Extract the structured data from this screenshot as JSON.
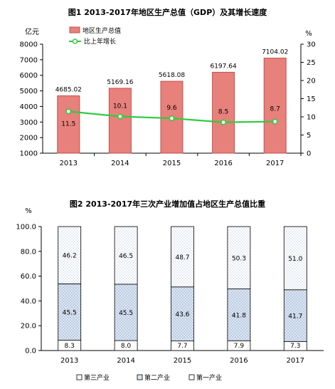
{
  "colors": {
    "bar1_fill": "#e8807b",
    "bar1_stroke": "#c0504d",
    "line": "#2ecc40",
    "stack_tertiary": "#ffffff",
    "stack_secondary": "#dce6f1",
    "stack_primary": "#ffffff",
    "axis": "#000000"
  },
  "chart_data": [
    {
      "type": "bar",
      "title": "图1  2013-2017年地区生产总值（GDP）及其增长速度",
      "ylabel": "亿元",
      "y2label": "%",
      "categories": [
        "2013",
        "2014",
        "2015",
        "2016",
        "2017"
      ],
      "ylim": [
        1000,
        8000
      ],
      "yticks": [
        1000,
        2000,
        3000,
        4000,
        5000,
        6000,
        7000,
        8000
      ],
      "y2lim": [
        0,
        30
      ],
      "y2ticks": [
        0,
        5,
        10,
        15,
        20,
        25,
        30
      ],
      "legend_position": "top-left",
      "series": [
        {
          "name": "地区生产总值",
          "kind": "bar",
          "axis": "left",
          "values": [
            4685.02,
            5169.16,
            5618.08,
            6197.64,
            7104.02
          ],
          "labels": [
            "4685.02",
            "5169.16",
            "5618.08",
            "6197.64",
            "7104.02"
          ]
        },
        {
          "name": "比上年增长",
          "kind": "line",
          "axis": "right",
          "values": [
            11.5,
            10.1,
            9.6,
            8.5,
            8.7
          ],
          "labels": [
            "11.5",
            "10.1",
            "9.6",
            "8.5",
            "8.7"
          ]
        }
      ]
    },
    {
      "type": "bar",
      "stacked": true,
      "title": "图2  2013-2017年三次产业增加值占地区生产总值比重",
      "ylabel": "%",
      "categories": [
        "2013",
        "2014",
        "2015",
        "2016",
        "2017"
      ],
      "ylim": [
        0,
        100
      ],
      "yticks": [
        "0.0",
        "20.0",
        "40.0",
        "60.0",
        "80.0",
        "100.0"
      ],
      "legend_position": "bottom",
      "series": [
        {
          "name": "第一产业",
          "values": [
            8.3,
            8.0,
            7.7,
            7.9,
            7.3
          ],
          "labels": [
            "8.3",
            "8.0",
            "7.7",
            "7.9",
            "7.3"
          ]
        },
        {
          "name": "第二产业",
          "values": [
            45.5,
            45.5,
            43.6,
            41.8,
            41.7
          ],
          "labels": [
            "45.5",
            "45.5",
            "43.6",
            "41.8",
            "41.7"
          ]
        },
        {
          "name": "第三产业",
          "values": [
            46.2,
            46.5,
            48.7,
            50.3,
            51.0
          ],
          "labels": [
            "46.2",
            "46.5",
            "48.7",
            "50.3",
            "51.0"
          ]
        }
      ],
      "legend_order": [
        "第三产业",
        "第二产业",
        "第一产业"
      ]
    }
  ]
}
